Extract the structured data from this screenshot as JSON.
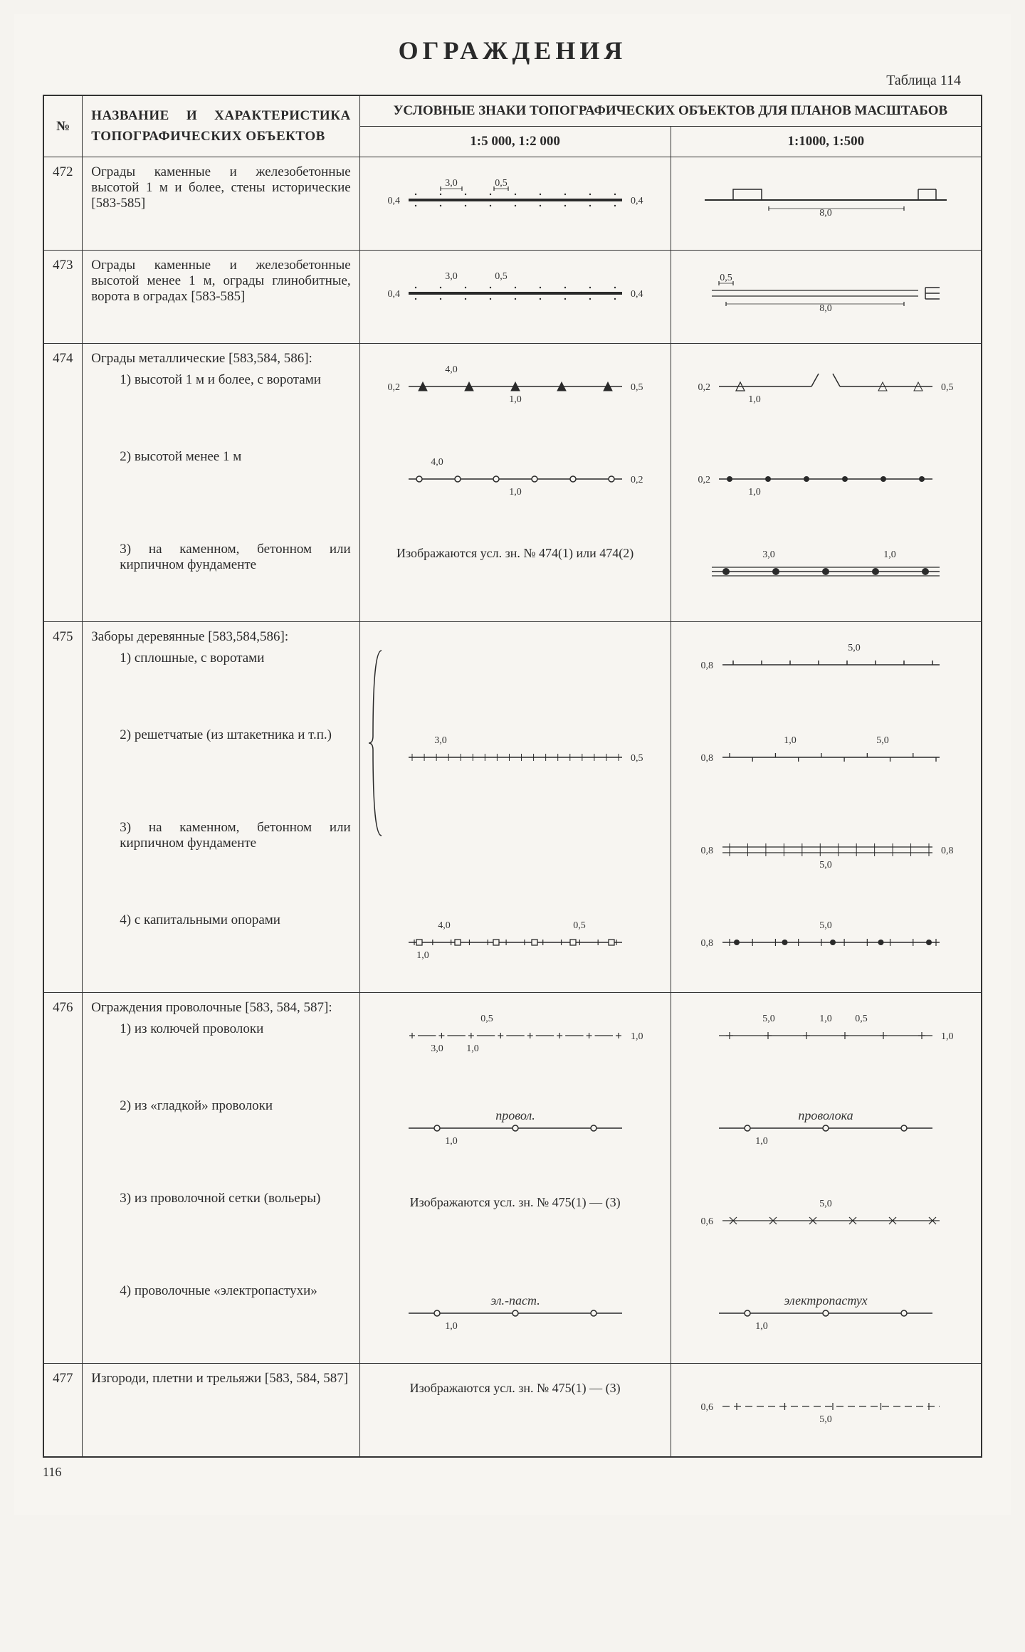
{
  "title": "ОГРАЖДЕНИЯ",
  "table_caption": "Таблица 114",
  "page_number": "116",
  "headers": {
    "num": "№",
    "name": "НАЗВАНИЕ И ХАРАКТЕРИСТИКА ТОПОГРАФИЧЕСКИХ ОБЪЕКТОВ",
    "signs": "УСЛОВНЫЕ ЗНАКИ ТОПОГРАФИЧЕСКИХ ОБЪЕКТОВ ДЛЯ ПЛАНОВ МАСШТАБОВ",
    "scale1": "1:5 000, 1:2 000",
    "scale2": "1:1000, 1:500"
  },
  "rows": [
    {
      "num": "472",
      "desc": "Ограды каменные и железобетонные высотой 1 м и более, стены исторические [583-585]",
      "sym1": {
        "type": "thick-dots",
        "dims": {
          "top1": "3,0",
          "top2": "0,5",
          "left": "0,4",
          "right": "0,4"
        }
      },
      "sym2": {
        "type": "rect-line",
        "dims": {
          "bot": "8,0"
        }
      }
    },
    {
      "num": "473",
      "desc": "Ограды каменные и железобетонные высотой менее 1 м, ограды глинобитные, ворота в оградах [583-585]",
      "sym1": {
        "type": "thick-dots-gate",
        "dims": {
          "top1": "3,0",
          "top2": "0,5",
          "left": "0,4",
          "right": "0,4"
        }
      },
      "sym2": {
        "type": "double-line-gate",
        "dims": {
          "top": "0,5",
          "bot": "8,0"
        }
      }
    },
    {
      "num": "474",
      "desc": "Ограды металлические [583,584, 586]:",
      "subs": [
        {
          "t": "1) высотой 1 м и более, с воротами",
          "s1": {
            "type": "arrow-fill",
            "dims": {
              "top": "4,0",
              "left": "0,2",
              "right": "0,5",
              "bot": "1,0"
            }
          },
          "s2": {
            "type": "arrow-open-gate",
            "dims": {
              "left": "0,2",
              "right": "0,5",
              "bot": "1,0"
            }
          }
        },
        {
          "t": "2) высотой менее 1 м",
          "s1": {
            "type": "circ-open",
            "dims": {
              "top": "4,0",
              "right": "0,2",
              "bot": "1,0"
            }
          },
          "s2": {
            "type": "circ-fill",
            "dims": {
              "left": "0,2",
              "bot": "1,0"
            }
          }
        },
        {
          "t": "3) на каменном, бетонном или кирпичном фундаменте",
          "s1": {
            "type": "note",
            "text": "Изображаются усл. зн. № 474(1) или 474(2)"
          },
          "s2": {
            "type": "triple-fill",
            "dims": {
              "top1": "3,0",
              "top2": "1,0"
            }
          }
        }
      ]
    },
    {
      "num": "475",
      "desc": "Заборы деревянные [583,584,586]:",
      "subs": [
        {
          "t": "1) сплошные, с воротами",
          "s1": {
            "type": "brace-top"
          },
          "s2": {
            "type": "ticks-mid",
            "dims": {
              "left": "0,8",
              "top": "5,0"
            }
          }
        },
        {
          "t": "2) решетчатые (из штакетника и т.п.)",
          "s1": {
            "type": "ticks-dense",
            "dims": {
              "top": "3,0",
              "right": "0,5"
            }
          },
          "s2": {
            "type": "ticks-alt",
            "dims": {
              "left": "0,8",
              "top1": "1,0",
              "top2": "5,0"
            }
          }
        },
        {
          "t": "3) на каменном, бетонном или кирпичном фундаменте",
          "s1": {
            "type": "brace-bot"
          },
          "s2": {
            "type": "ticks-double",
            "dims": {
              "left": "0,8",
              "right": "0,8",
              "bot": "5,0"
            }
          }
        },
        {
          "t": "4) с капитальными опорами",
          "s1": {
            "type": "ticks-sq",
            "dims": {
              "top1": "4,0",
              "top2": "0,5",
              "bot": "1,0"
            }
          },
          "s2": {
            "type": "ticks-sq2",
            "dims": {
              "left": "0,8",
              "top": "5,0"
            }
          }
        }
      ]
    },
    {
      "num": "476",
      "desc": "Ограждения проволочные [583, 584, 587]:",
      "subs": [
        {
          "t": "1) из колючей проволоки",
          "s1": {
            "type": "plus-dash",
            "dims": {
              "top": "0,5",
              "bot1": "3,0",
              "bot2": "1,0",
              "right": "1,0"
            }
          },
          "s2": {
            "type": "plus-dash2",
            "dims": {
              "top1": "5,0",
              "top2": "1,0",
              "top3": "0,5",
              "right": "1,0"
            }
          }
        },
        {
          "t": "2) из «гладкой» проволоки",
          "s1": {
            "type": "circ-label",
            "label": "провол.",
            "dims": {
              "bot": "1,0"
            }
          },
          "s2": {
            "type": "circ-label",
            "label": "проволока",
            "dims": {
              "bot": "1,0"
            }
          }
        },
        {
          "t": "3) из проволочной сетки (вольеры)",
          "s1": {
            "type": "note",
            "text": "Изображаются усл. зн. № 475(1) — (3)"
          },
          "s2": {
            "type": "x-line",
            "dims": {
              "left": "0,6",
              "top": "5,0"
            }
          }
        },
        {
          "t": "4) проволочные «электропастухи»",
          "s1": {
            "type": "circ-label",
            "label": "эл.-паст.",
            "dims": {
              "bot": "1,0"
            }
          },
          "s2": {
            "type": "circ-label",
            "label": "электропастух",
            "dims": {
              "bot": "1,0"
            }
          }
        }
      ]
    },
    {
      "num": "477",
      "desc": "Изгороди, плетни и трельяжи [583, 584, 587]",
      "sym1": {
        "type": "note",
        "text": "Изображаются усл. зн. № 475(1) — (3)"
      },
      "sym2": {
        "type": "dash-line",
        "dims": {
          "left": "0,6",
          "bot": "5,0"
        }
      }
    }
  ],
  "colors": {
    "line": "#2a2a2a",
    "bg": "#f7f5f1"
  }
}
